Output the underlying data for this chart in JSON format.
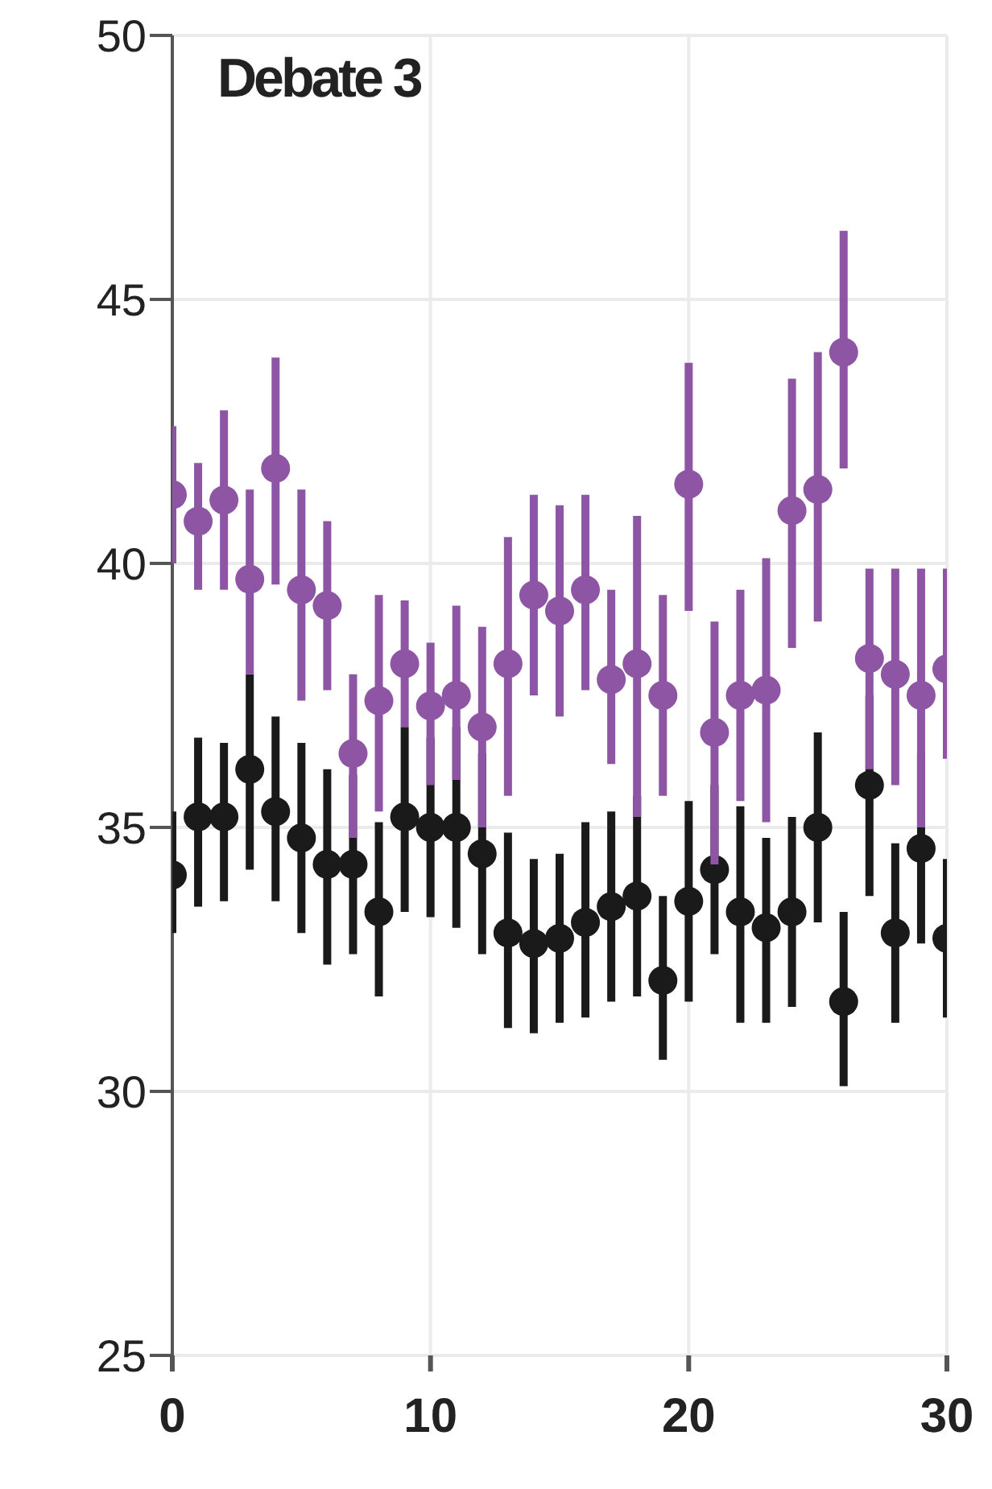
{
  "chart_data": {
    "type": "scatter",
    "title": "Debate 3",
    "x": [
      0,
      1,
      2,
      3,
      4,
      5,
      6,
      7,
      8,
      9,
      10,
      11,
      12,
      13,
      14,
      15,
      16,
      17,
      18,
      19,
      20,
      21,
      22,
      23,
      24,
      25,
      26,
      27,
      28,
      29,
      30
    ],
    "series": [
      {
        "color": "#8e55a5",
        "values": [
          41.3,
          40.8,
          41.2,
          39.7,
          41.8,
          39.5,
          39.2,
          36.4,
          37.4,
          38.1,
          37.3,
          37.5,
          36.9,
          38.1,
          39.4,
          39.1,
          39.5,
          37.8,
          38.1,
          37.5,
          41.5,
          36.8,
          37.5,
          37.6,
          41.0,
          41.4,
          44.0,
          38.2,
          37.9,
          37.5,
          38.0
        ],
        "errors": [
          [
            40.0,
            42.6
          ],
          [
            39.5,
            41.9
          ],
          [
            39.5,
            42.9
          ],
          [
            37.9,
            41.4
          ],
          [
            39.6,
            43.9
          ],
          [
            37.4,
            41.4
          ],
          [
            37.6,
            40.8
          ],
          [
            34.8,
            37.9
          ],
          [
            35.3,
            39.4
          ],
          [
            36.9,
            39.3
          ],
          [
            35.8,
            38.5
          ],
          [
            35.9,
            39.2
          ],
          [
            35.0,
            38.8
          ],
          [
            35.6,
            40.5
          ],
          [
            37.5,
            41.3
          ],
          [
            37.1,
            41.1
          ],
          [
            37.6,
            41.3
          ],
          [
            36.2,
            39.5
          ],
          [
            35.2,
            40.9
          ],
          [
            35.6,
            39.4
          ],
          [
            39.1,
            43.8
          ],
          [
            34.3,
            38.9
          ],
          [
            35.5,
            39.5
          ],
          [
            35.1,
            40.1
          ],
          [
            38.4,
            43.5
          ],
          [
            38.9,
            44.0
          ],
          [
            41.8,
            46.3
          ],
          [
            36.1,
            39.9
          ],
          [
            35.8,
            39.9
          ],
          [
            35.0,
            39.9
          ],
          [
            36.3,
            39.9
          ]
        ]
      },
      {
        "color": "#1a1a1a",
        "values": [
          34.1,
          35.2,
          35.2,
          36.1,
          35.3,
          34.8,
          34.3,
          34.3,
          33.4,
          35.2,
          35.0,
          35.0,
          34.5,
          33.0,
          32.8,
          32.9,
          33.2,
          33.5,
          33.7,
          32.1,
          33.6,
          34.2,
          33.4,
          33.1,
          33.4,
          35.0,
          31.7,
          35.8,
          33.0,
          34.6,
          32.9
        ],
        "errors": [
          [
            33.0,
            35.3
          ],
          [
            33.5,
            36.7
          ],
          [
            33.6,
            36.6
          ],
          [
            34.2,
            37.9
          ],
          [
            33.6,
            37.1
          ],
          [
            33.0,
            36.6
          ],
          [
            32.4,
            36.1
          ],
          [
            32.6,
            36.0
          ],
          [
            31.8,
            35.1
          ],
          [
            33.4,
            36.9
          ],
          [
            33.3,
            36.7
          ],
          [
            33.1,
            36.9
          ],
          [
            32.6,
            36.4
          ],
          [
            31.2,
            34.9
          ],
          [
            31.1,
            34.4
          ],
          [
            31.3,
            34.5
          ],
          [
            31.4,
            35.1
          ],
          [
            31.7,
            35.3
          ],
          [
            31.8,
            35.6
          ],
          [
            30.6,
            33.7
          ],
          [
            31.7,
            35.5
          ],
          [
            32.6,
            35.8
          ],
          [
            31.3,
            35.4
          ],
          [
            31.3,
            34.8
          ],
          [
            31.6,
            35.2
          ],
          [
            33.2,
            36.8
          ],
          [
            30.1,
            33.4
          ],
          [
            33.7,
            37.5
          ],
          [
            31.3,
            34.7
          ],
          [
            32.8,
            36.4
          ],
          [
            31.4,
            34.4
          ]
        ]
      }
    ],
    "xlim": [
      0,
      30
    ],
    "xticks": [
      0,
      10,
      20,
      30
    ],
    "ylim": [
      25,
      50
    ],
    "yticks": [
      25,
      30,
      35,
      40,
      45,
      50
    ],
    "grid": true,
    "marker": "circle"
  }
}
